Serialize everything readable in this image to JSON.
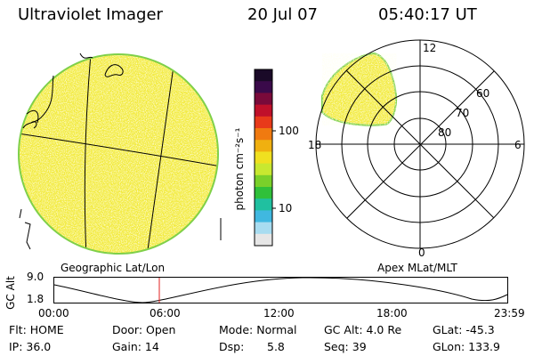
{
  "header": {
    "title": "Ultraviolet Imager",
    "date": "20 Jul 07",
    "time": "05:40:17 UT"
  },
  "colorbar": {
    "unit_label": "photon cm⁻²s⁻¹",
    "ticks": [
      "100",
      "10"
    ],
    "colors": [
      "#1a0a28",
      "#3a0a4a",
      "#7a0a3a",
      "#c0102a",
      "#e83a1a",
      "#f07a10",
      "#f0b010",
      "#f0e020",
      "#c8e830",
      "#7ad02a",
      "#30c03a",
      "#20c0a0",
      "#40b8e0",
      "#a8dcf0",
      "#e6e6e6"
    ]
  },
  "geo_panel": {
    "label": "Geographic Lat/Lon"
  },
  "polar_panel": {
    "label": "Apex MLat/MLT",
    "mlt_labels": {
      "top": "12",
      "left": "18",
      "right": "6",
      "bottom": "0"
    },
    "lat_labels": [
      "60",
      "70",
      "80"
    ]
  },
  "altitude_plot": {
    "axis_label": "GC Alt",
    "y_ticks": [
      "9.0",
      "1.8"
    ],
    "x_ticks": [
      "00:00",
      "06:00",
      "12:00",
      "18:00",
      "23:59"
    ],
    "current_time_color": "#e02020"
  },
  "info": {
    "flt": "Flt: HOME",
    "ip": "IP: 36.0",
    "door": "Door: Open",
    "gain": "Gain: 14",
    "mode": "Mode: Normal",
    "dsp_label": "Dsp:",
    "dsp_value": "5.8",
    "gc_alt": "GC Alt: 4.0 Re",
    "seq": "Seq: 39",
    "glat": "GLat: -45.3",
    "glon": "GLon: 133.9"
  }
}
